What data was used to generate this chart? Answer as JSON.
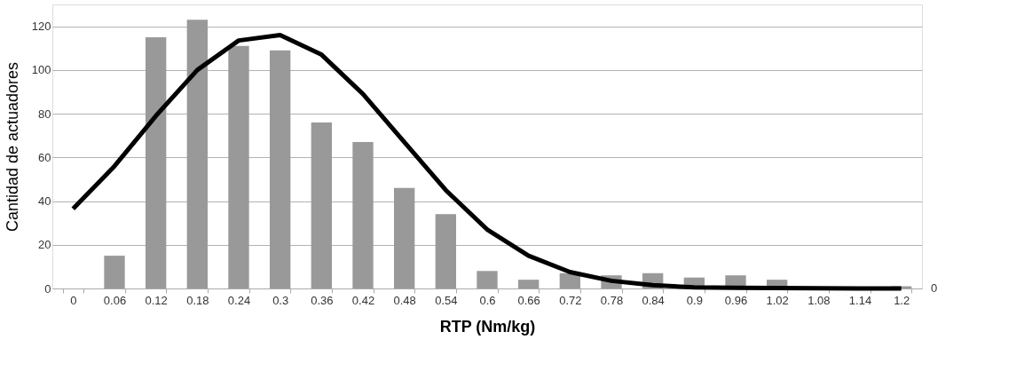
{
  "chart_data": {
    "type": "bar",
    "xlabel": "RTP (Nm/kg)",
    "ylabel": "Cantidad de actuadores",
    "categories": [
      "0",
      "0.06",
      "0.12",
      "0.18",
      "0.24",
      "0.3",
      "0.36",
      "0.42",
      "0.48",
      "0.54",
      "0.6",
      "0.66",
      "0.72",
      "0.78",
      "0.84",
      "0.9",
      "0.96",
      "1.02",
      "1.08",
      "1.14",
      "1.2"
    ],
    "series": [
      {
        "color": "#999999",
        "values": [
          0,
          15,
          115,
          123,
          111,
          109,
          76,
          67,
          46,
          34,
          8,
          4,
          7,
          6,
          7,
          5,
          6,
          4,
          null,
          null,
          1
        ]
      },
      {
        "type": "line",
        "color": "#000000",
        "values": [
          36.5,
          56,
          79,
          100,
          113.5,
          116,
          107,
          89,
          67,
          45,
          27,
          15,
          7.5,
          3.5,
          1.5,
          0.5,
          0.3,
          0.2,
          0.1,
          0,
          0
        ]
      }
    ],
    "ylim": [
      0,
      130
    ],
    "yticks": [
      0,
      20,
      40,
      60,
      80,
      100,
      120
    ],
    "annotations": [
      "0"
    ],
    "grid": "y",
    "line_style": "solid",
    "marker": "none"
  }
}
